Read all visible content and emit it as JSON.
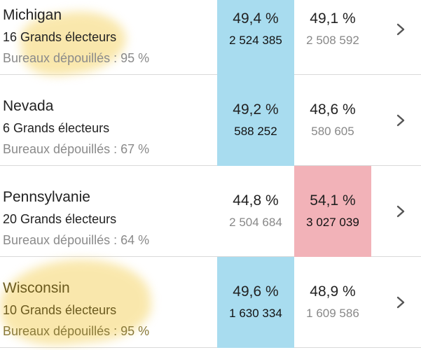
{
  "colors": {
    "dem_win": "#a8dcef",
    "rep_win": "#f2b2b8",
    "highlight": "#f5d56a",
    "text": "#222222",
    "muted": "#8a8a8a",
    "divider": "#d9d9d9"
  },
  "icons": {
    "row_action": "chevron-right-icon"
  },
  "states": [
    {
      "name": "Michigan",
      "electors": "16 Grands électeurs",
      "counted": "Bureaux dépouillés : 95 %",
      "dem": {
        "pct": "49,4 %",
        "votes": "2 524 385",
        "winner": true
      },
      "rep": {
        "pct": "49,1 %",
        "votes": "2 508 592",
        "winner": false
      },
      "highlighted": true
    },
    {
      "name": "Nevada",
      "electors": "6 Grands électeurs",
      "counted": "Bureaux dépouillés : 67 %",
      "dem": {
        "pct": "49,2 %",
        "votes": "588 252",
        "winner": true
      },
      "rep": {
        "pct": "48,6 %",
        "votes": "580 605",
        "winner": false
      },
      "highlighted": false
    },
    {
      "name": "Pennsylvanie",
      "electors": "20 Grands électeurs",
      "counted": "Bureaux dépouillés : 64 %",
      "dem": {
        "pct": "44,8 %",
        "votes": "2 504 684",
        "winner": false
      },
      "rep": {
        "pct": "54,1 %",
        "votes": "3 027 039",
        "winner": true
      },
      "highlighted": false
    },
    {
      "name": "Wisconsin",
      "electors": "10 Grands électeurs",
      "counted": "Bureaux dépouillés : 95 %",
      "dem": {
        "pct": "49,6 %",
        "votes": "1 630 334",
        "winner": true
      },
      "rep": {
        "pct": "48,9 %",
        "votes": "1 609 586",
        "winner": false
      },
      "highlighted": true
    }
  ]
}
